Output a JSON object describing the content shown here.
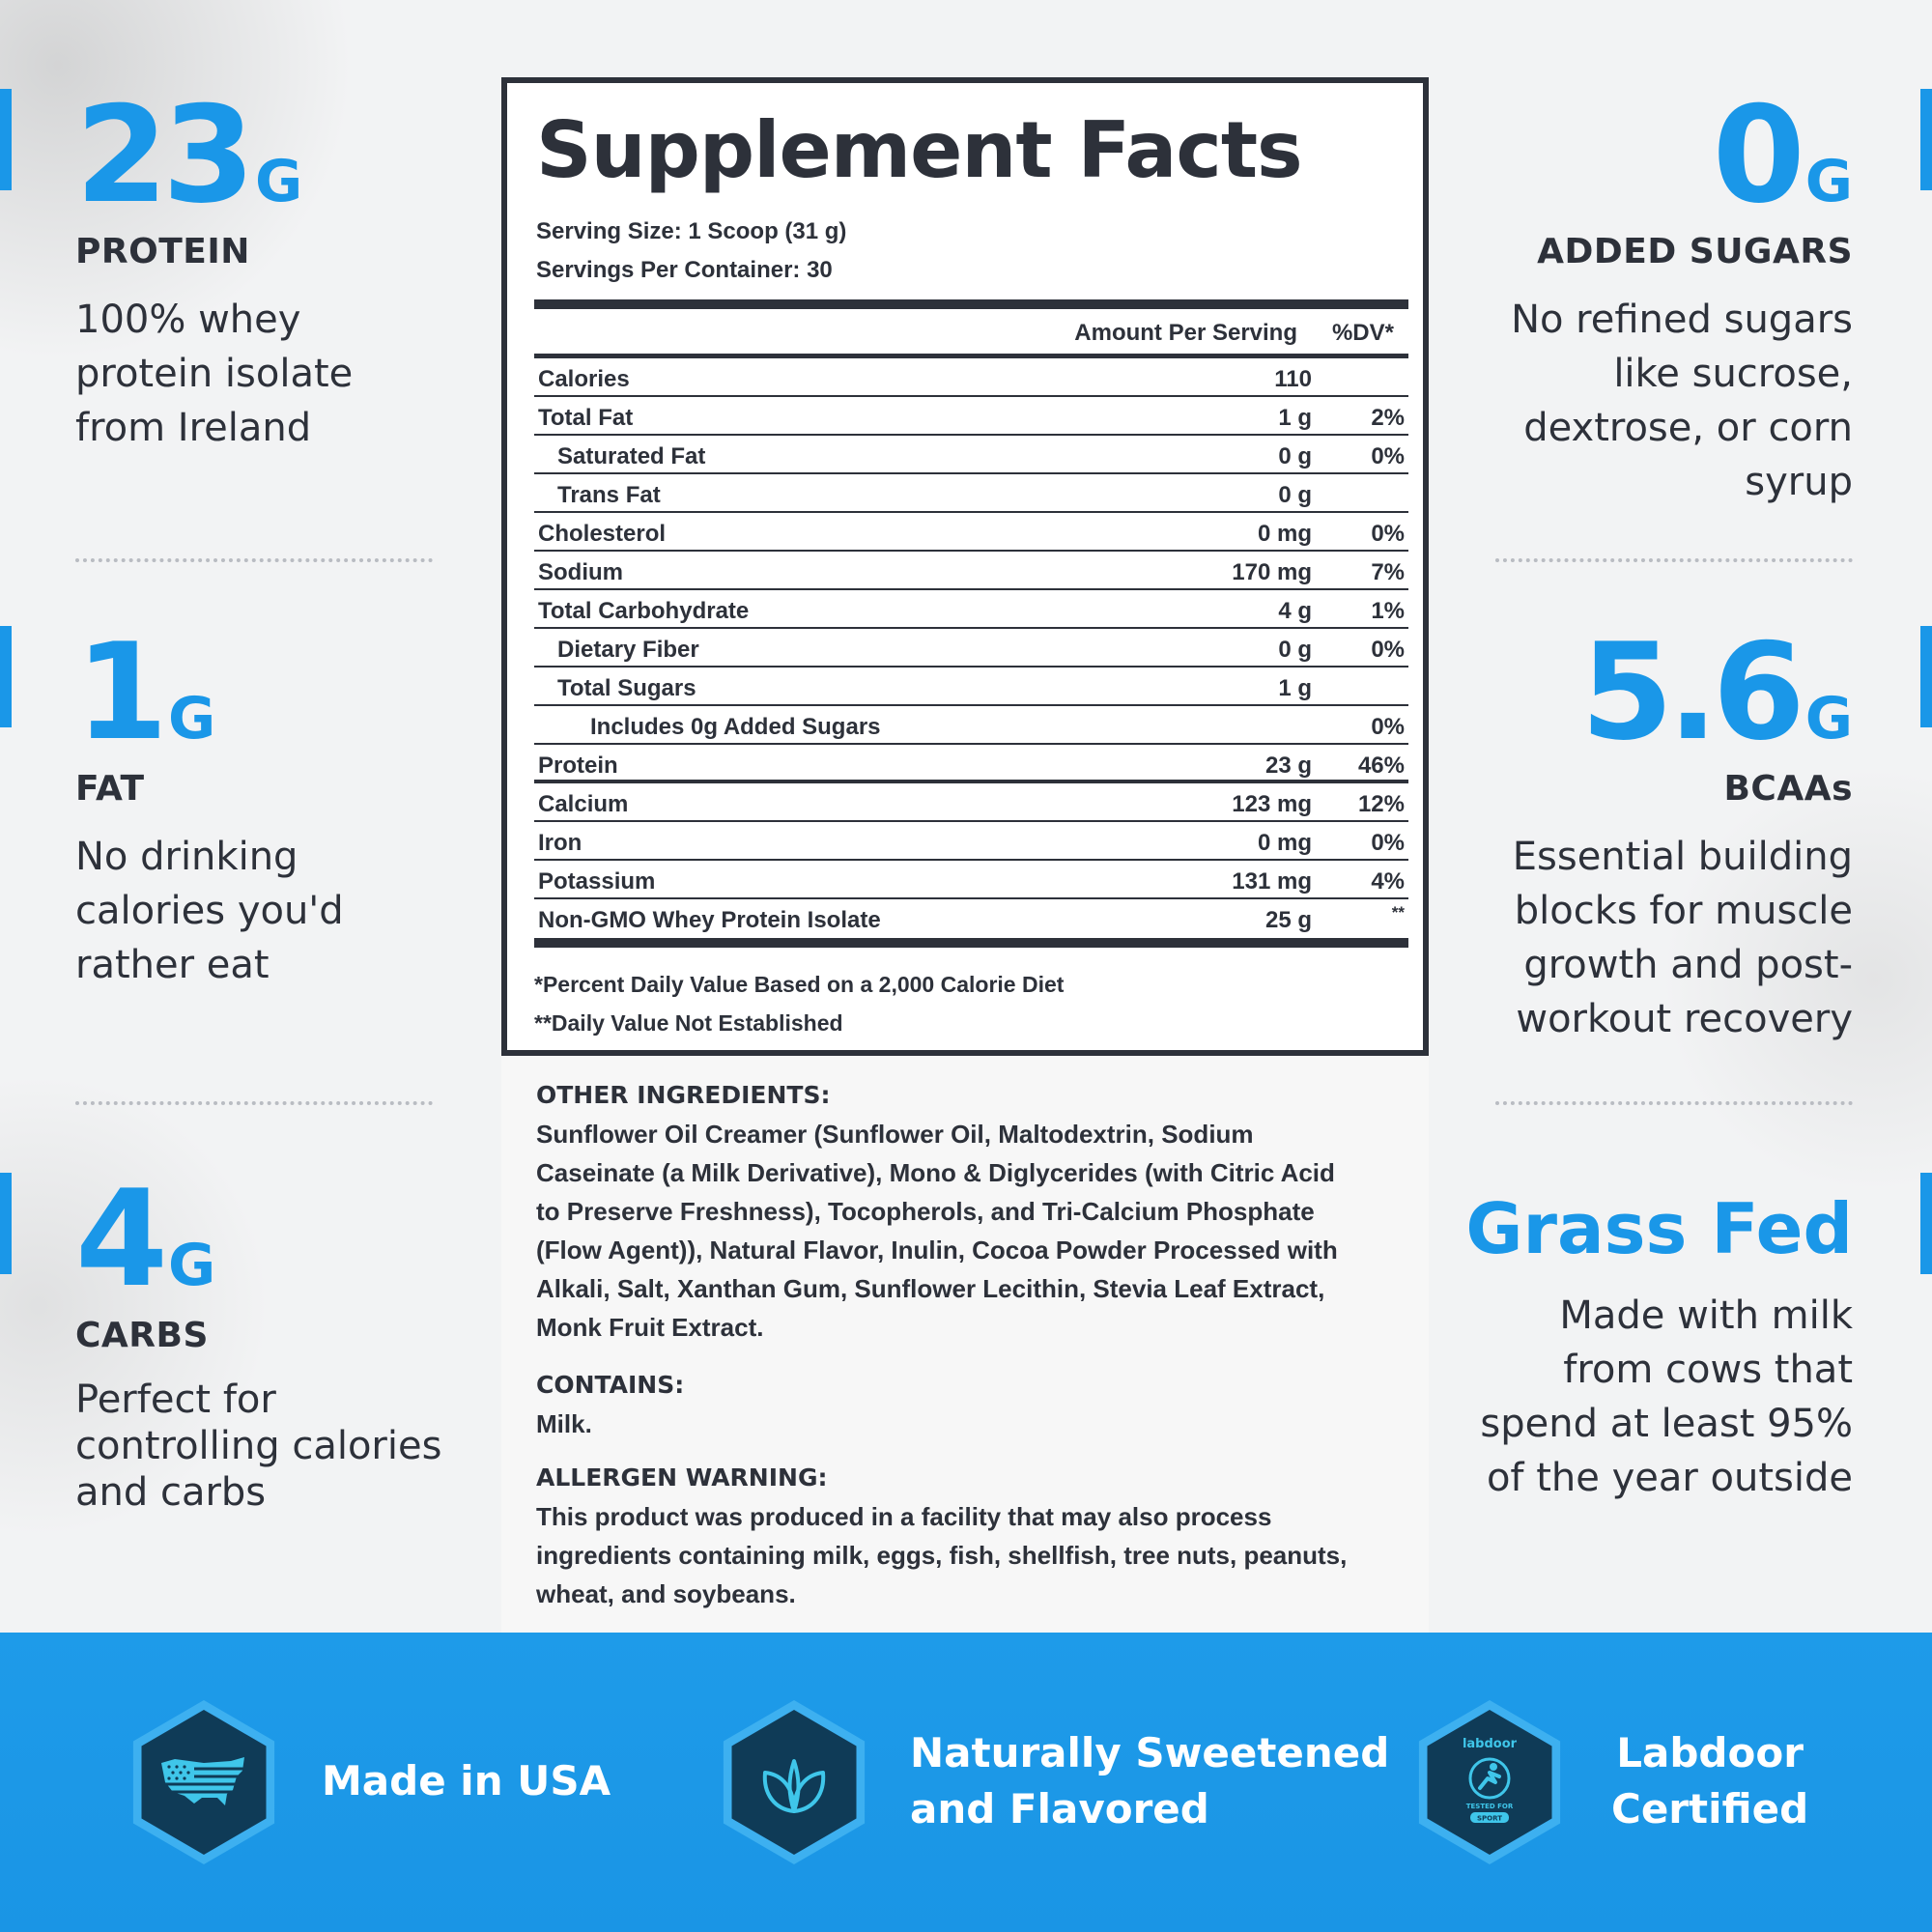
{
  "colors": {
    "accent": "#1a97e8",
    "text": "#2d313a",
    "band": "#1e9be9",
    "hex_dark": "#0f3b57"
  },
  "stats_left": [
    {
      "value": "23",
      "unit": "G",
      "label": "PROTEIN",
      "desc": [
        "100% whey",
        "protein isolate",
        "from Ireland"
      ]
    },
    {
      "value": "1",
      "unit": "G",
      "label": "FAT",
      "desc": [
        "No drinking",
        "calories you'd",
        "rather eat"
      ]
    },
    {
      "value": "4",
      "unit": "G",
      "label": "CARBS",
      "desc": [
        "Perfect for",
        "controlling calories",
        "and carbs"
      ]
    }
  ],
  "stats_right": [
    {
      "value": "0",
      "unit": "G",
      "label": "ADDED SUGARS",
      "desc": [
        "No refined sugars",
        "like sucrose,",
        "dextrose, or corn",
        "syrup"
      ]
    },
    {
      "value": "5.6",
      "unit": "G",
      "label": "BCAAs",
      "desc": [
        "Essential building",
        "blocks for muscle",
        "growth and post-",
        "workout recovery"
      ]
    },
    {
      "title": "Grass Fed",
      "desc": [
        "Made with milk",
        "from cows that",
        "spend at least 95%",
        "of the year outside"
      ]
    }
  ],
  "facts": {
    "title": "Supplement Facts",
    "serving_size": "Serving Size: 1 Scoop (31 g)",
    "servings_per_container": "Servings Per Container: 30",
    "header_amount": "Amount Per Serving",
    "header_dv": "%DV*",
    "rows": [
      {
        "name": "Calories",
        "amount": "110",
        "dv": ""
      },
      {
        "name": "Total Fat",
        "amount": "1 g",
        "dv": "2%"
      },
      {
        "name": "Saturated Fat",
        "amount": "0 g",
        "dv": "0%"
      },
      {
        "name": "Trans Fat",
        "amount": "0 g",
        "dv": ""
      },
      {
        "name": "Cholesterol",
        "amount": "0 mg",
        "dv": "0%"
      },
      {
        "name": "Sodium",
        "amount": "170 mg",
        "dv": "7%"
      },
      {
        "name": "Total Carbohydrate",
        "amount": "4 g",
        "dv": "1%"
      },
      {
        "name": "Dietary Fiber",
        "amount": "0 g",
        "dv": "0%"
      },
      {
        "name": "Total Sugars",
        "amount": "1 g",
        "dv": ""
      },
      {
        "name": "Includes 0g Added Sugars",
        "amount": "",
        "dv": "0%"
      },
      {
        "name": "Protein",
        "amount": "23 g",
        "dv": "46%"
      },
      {
        "name": "Calcium",
        "amount": "123 mg",
        "dv": "12%"
      },
      {
        "name": "Iron",
        "amount": "0 mg",
        "dv": "0%"
      },
      {
        "name": "Potassium",
        "amount": "131 mg",
        "dv": "4%"
      },
      {
        "name": "Non-GMO Whey Protein Isolate",
        "amount": "25 g",
        "dv": "**"
      }
    ],
    "footnote1": "*Percent Daily Value Based on a 2,000 Calorie Diet",
    "footnote2": "**Daily Value Not Established"
  },
  "ingredients": {
    "other_heading": "OTHER INGREDIENTS:",
    "other_lines": [
      "Sunflower Oil Creamer (Sunflower Oil, Maltodextrin, Sodium",
      "Caseinate (a Milk Derivative), Mono & Diglycerides (with Citric Acid",
      "to Preserve Freshness), Tocopherols, and Tri-Calcium Phosphate",
      "(Flow Agent)), Natural Flavor, Inulin, Cocoa Powder Processed with",
      "Alkali, Salt, Xanthan Gum, Sunflower Lecithin, Stevia Leaf Extract,",
      "Monk Fruit Extract."
    ],
    "contains_heading": "CONTAINS:",
    "contains_text": "Milk.",
    "allergen_heading": "ALLERGEN WARNING:",
    "allergen_lines": [
      "This product was produced in a facility that may also process",
      "ingredients containing milk, eggs, fish, shellfish, tree nuts, peanuts,",
      "wheat, and soybeans."
    ]
  },
  "badges": [
    {
      "icon": "usa-flag-icon",
      "lines": [
        "Made in USA"
      ]
    },
    {
      "icon": "leaf-icon",
      "lines": [
        "Naturally Sweetened",
        "and Flavored"
      ]
    },
    {
      "icon": "labdoor-icon",
      "lines": [
        "Labdoor",
        "Certified"
      ],
      "logo_text": "labdoor",
      "logo_sub": "TESTED FOR",
      "logo_sport": "SPORT"
    }
  ]
}
